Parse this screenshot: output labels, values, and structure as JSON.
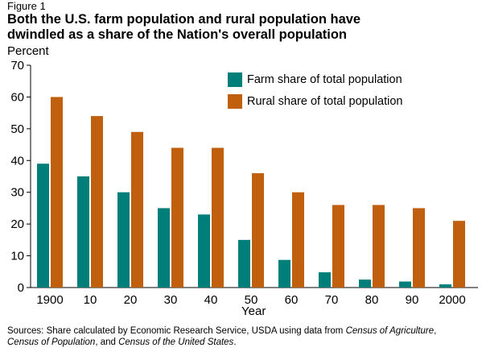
{
  "figure_label": "Figure 1",
  "title_lines": [
    "Both the U.S. farm population and rural population have",
    "dwindled as a share of the Nation's overall population"
  ],
  "source": {
    "line1_prefix": "Sources: Share calculated by Economic Research Service, USDA using data from ",
    "line1_italic": "Census of Agriculture",
    "line1_suffix": ",",
    "line2_italic1": "Census of Population",
    "line2_mid": ", and ",
    "line2_italic2": "Census of the United States",
    "line2_suffix": "."
  },
  "colors": {
    "farm": "#007f7a",
    "rural": "#c0600f",
    "axis": "#000000"
  },
  "chart_data": {
    "type": "bar",
    "ylabel": "Percent",
    "xlabel": "Year",
    "ylim": [
      0,
      70
    ],
    "yticks": [
      0,
      10,
      20,
      30,
      40,
      50,
      60,
      70
    ],
    "categories": [
      "1900",
      "10",
      "20",
      "30",
      "40",
      "50",
      "60",
      "70",
      "80",
      "90",
      "2000"
    ],
    "series": [
      {
        "name": "Farm share of total population",
        "color": "#007f7a",
        "values": [
          39,
          35,
          30,
          25,
          23,
          15,
          8.7,
          4.8,
          2.5,
          1.9,
          1.0
        ]
      },
      {
        "name": "Rural share of total population",
        "color": "#c0600f",
        "values": [
          60,
          54,
          49,
          44,
          44,
          36,
          30,
          26,
          26,
          25,
          21
        ]
      }
    ],
    "legend_position": "top-right",
    "grid": false
  }
}
